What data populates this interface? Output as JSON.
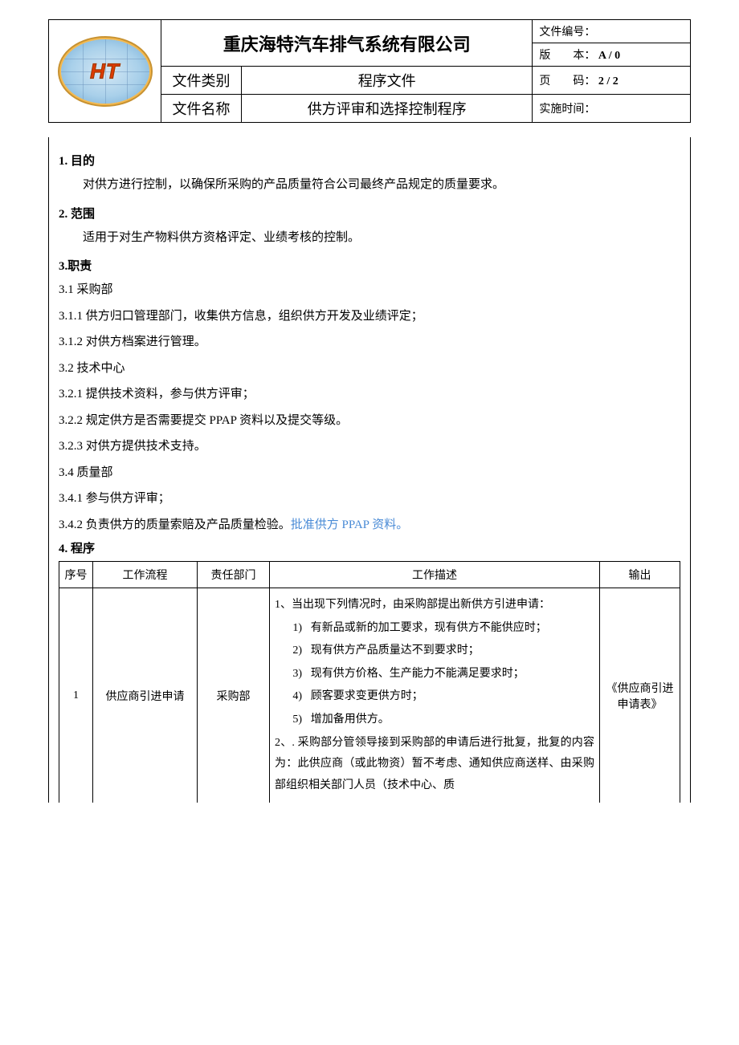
{
  "header": {
    "logo_text": "HT",
    "company": "重庆海特汽车排气系统有限公司",
    "doc_category_label": "文件类别",
    "doc_category_value": "程序文件",
    "doc_name_label": "文件名称",
    "doc_name_value": "供方评审和选择控制程序",
    "doc_no_label": "文件编号：",
    "doc_no_value": "",
    "version_label": "版　　本：",
    "version_value": "A / 0",
    "page_label": "页　　码：",
    "page_value": "2 / 2",
    "impl_label": "实施时间：",
    "impl_value": ""
  },
  "sections": {
    "s1_title": "1. 目的",
    "s1_text": "对供方进行控制，以确保所采购的产品质量符合公司最终产品规定的质量要求。",
    "s2_title": "2. 范围",
    "s2_text": "适用于对生产物料供方资格评定、业绩考核的控制。",
    "s3_title": "3.职责",
    "c31": "3.1 采购部",
    "c311": "3.1.1 供方归口管理部门，收集供方信息，组织供方开发及业绩评定；",
    "c312": "3.1.2 对供方档案进行管理。",
    "c32": "3.2 技术中心",
    "c321": "3.2.1 提供技术资料，参与供方评审；",
    "c322": "3.2.2 规定供方是否需要提交 PPAP 资料以及提交等级。",
    "c323": "3.2.3 对供方提供技术支持。",
    "c34": "3.4 质量部",
    "c341": "3.4.1 参与供方评审；",
    "c342a": "3.4.2 负责供方的质量索赔及产品质量检验。",
    "c342b": "批准供方 PPAP 资料。",
    "s4_title": "4. 程序"
  },
  "proc": {
    "headers": {
      "seq": "序号",
      "flow": "工作流程",
      "dept": "责任部门",
      "desc": "工作描述",
      "out": "输出"
    },
    "row1": {
      "seq": "1",
      "flow": "供应商引进申请",
      "dept": "采购部",
      "out": "《供应商引进申请表》",
      "d1": "1、当出现下列情况时，由采购部提出新供方引进申请：",
      "d1_1n": "1)",
      "d1_1": "有新品或新的加工要求，现有供方不能供应时；",
      "d1_2n": "2)",
      "d1_2": "现有供方产品质量达不到要求时；",
      "d1_3n": "3)",
      "d1_3": "现有供方价格、生产能力不能满足要求时；",
      "d1_4n": "4)",
      "d1_4": "顾客要求变更供方时；",
      "d1_5n": "5)",
      "d1_5": "增加备用供方。",
      "d2": "2、. 采购部分管领导接到采购部的申请后进行批复，批复的内容为：此供应商（或此物资）暂不考虑、通知供应商送样、由采购部组织相关部门人员（技术中心、质"
    }
  },
  "colors": {
    "text": "#000000",
    "highlight_blue": "#4a8bd6",
    "logo_red": "#e03a00",
    "logo_outline": "#a03a00",
    "globe_light": "#d5e8f5",
    "globe_dark": "#6ea9d4",
    "gold_ring": "#f4b94f"
  }
}
